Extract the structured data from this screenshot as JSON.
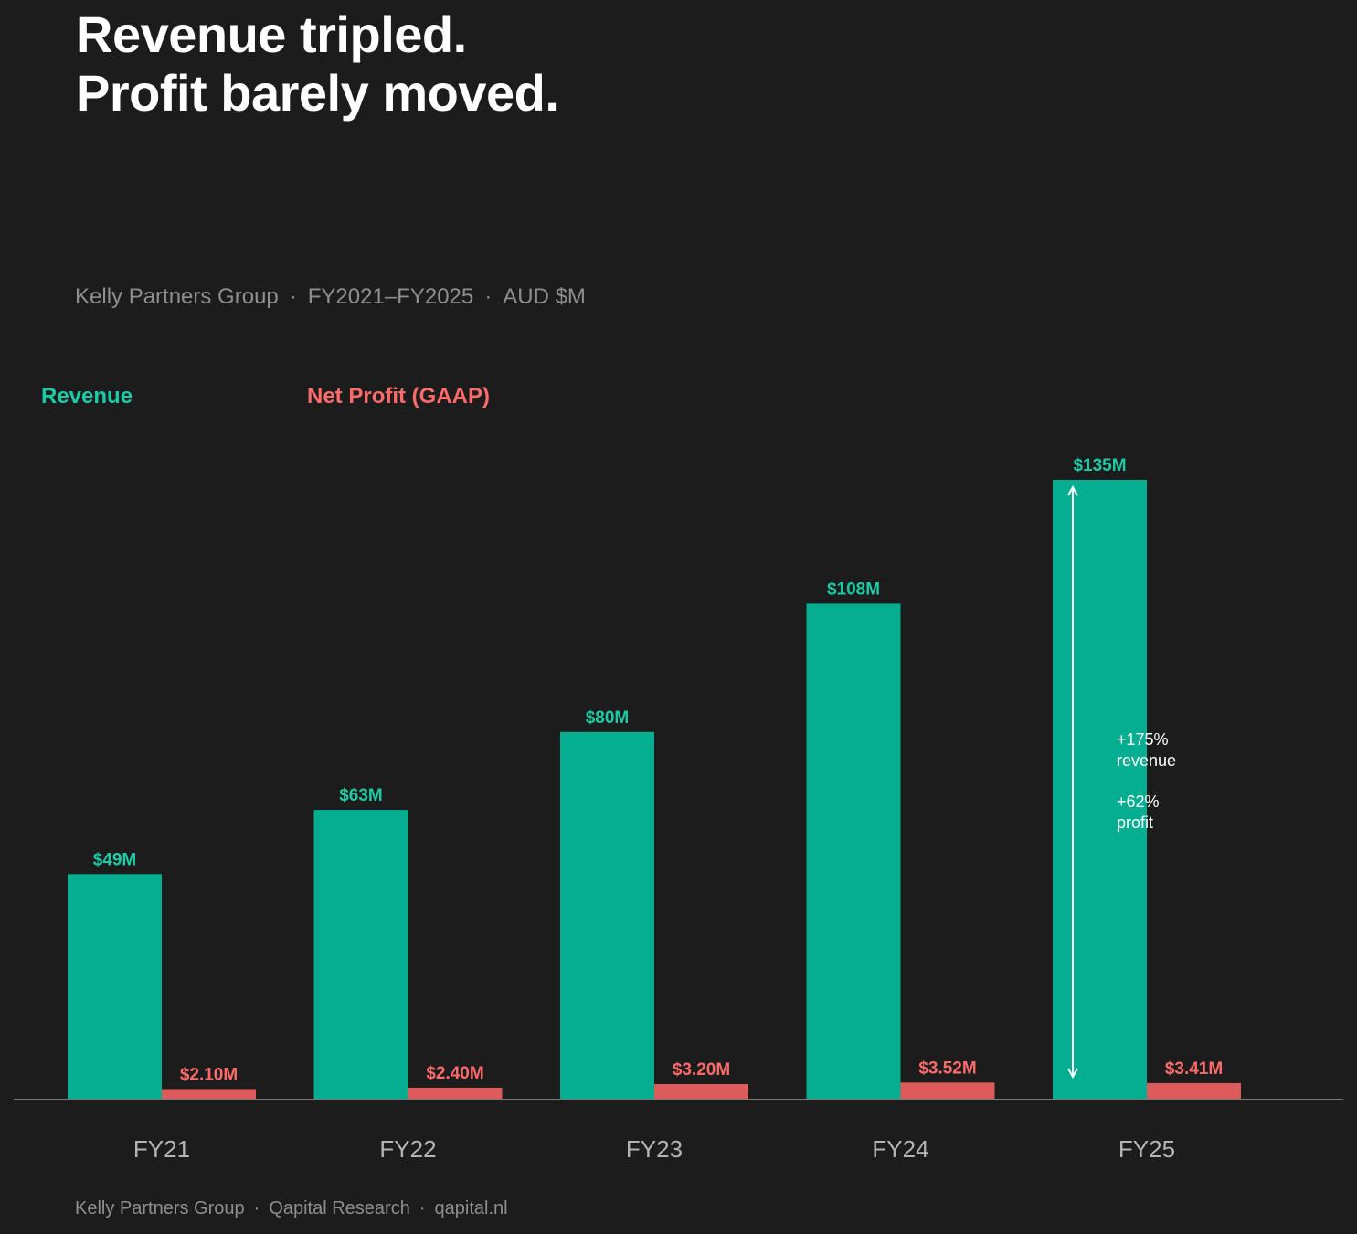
{
  "title_lines": [
    "Revenue tripled.",
    "Profit barely moved."
  ],
  "subtitle": {
    "company": "Kelly Partners Group",
    "period": "FY2021–FY2025",
    "unit": "AUD $M",
    "separator": "·"
  },
  "legend": {
    "revenue_label": "Revenue",
    "profit_label": "Net Profit (GAAP)"
  },
  "colors": {
    "background": "#1c1c1c",
    "revenue": "#05ae91",
    "revenue_text": "#1ec9a5",
    "profit": "#dd5b5b",
    "profit_text": "#ff6b6b",
    "axis_text": "#b5b5b5",
    "muted_text": "#8e8e8e"
  },
  "chart_data": {
    "type": "bar",
    "categories": [
      "FY21",
      "FY22",
      "FY23",
      "FY24",
      "FY25"
    ],
    "series": [
      {
        "name": "Revenue",
        "values": [
          49,
          63,
          80,
          108,
          135
        ],
        "labels": [
          "$49M",
          "$63M",
          "$80M",
          "$108M",
          "$135M"
        ]
      },
      {
        "name": "Net Profit (GAAP)",
        "values": [
          2.1,
          2.4,
          3.2,
          3.52,
          3.41
        ],
        "labels": [
          "$2.10M",
          "$2.40M",
          "$3.20M",
          "$3.52M",
          "$3.41M"
        ]
      }
    ],
    "ylim": [
      0,
      135
    ],
    "grid": false,
    "legend_position": "top-left",
    "annotation": {
      "category": "FY25",
      "lines": [
        "+175%",
        "revenue",
        "",
        "+62%",
        "profit"
      ]
    }
  },
  "footer": {
    "company": "Kelly Partners Group",
    "source": "Qapital Research",
    "site": "qapital.nl",
    "separator": "·"
  }
}
